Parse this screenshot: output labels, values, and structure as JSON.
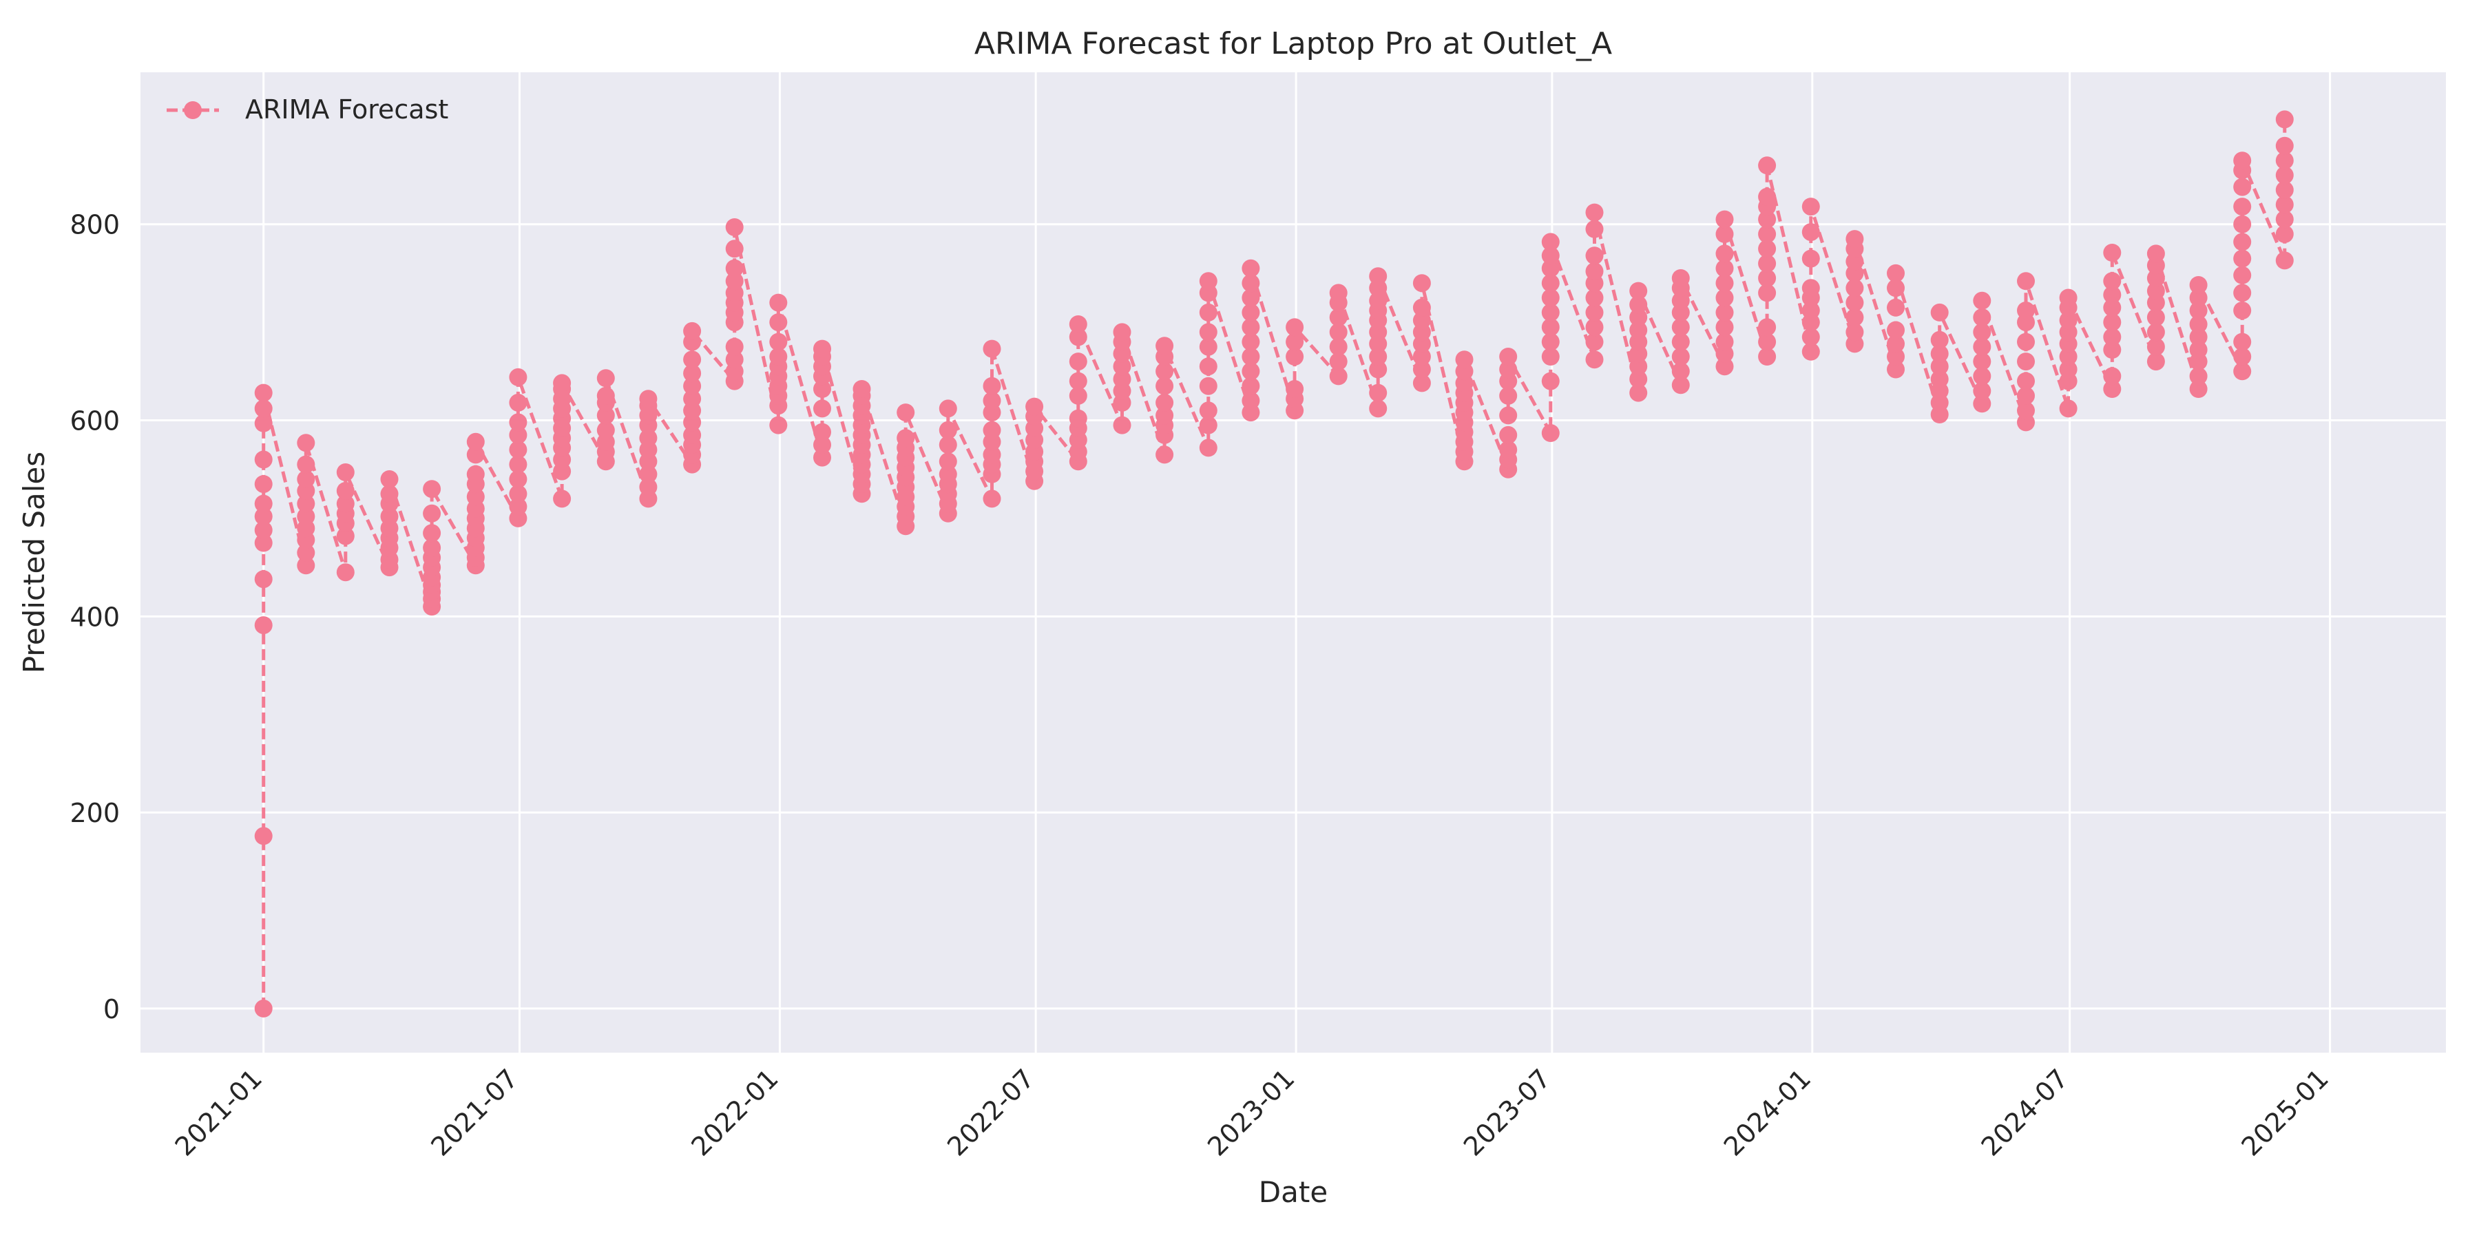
{
  "chart_data": {
    "type": "line",
    "title": "ARIMA Forecast for Laptop Pro at Outlet_A",
    "xlabel": "Date",
    "ylabel": "Predicted Sales",
    "xlim": [
      "2020-10-06",
      "2025-03-24"
    ],
    "ylim": [
      -45,
      955
    ],
    "x_ticks": [
      "2021-01",
      "2021-07",
      "2022-01",
      "2022-07",
      "2023-01",
      "2023-07",
      "2024-01",
      "2024-07",
      "2025-01"
    ],
    "y_ticks": [
      0,
      200,
      400,
      600,
      800
    ],
    "grid": true,
    "background": "#eaeaf2",
    "legend": {
      "position": "top-left",
      "entries": [
        "ARIMA Forecast"
      ]
    },
    "series": [
      {
        "name": "ARIMA Forecast",
        "color": "#f37b93",
        "line_style": "dashed",
        "marker": "circle",
        "points": [
          {
            "date": "2021-01-01",
            "values": [
              0,
              176,
              391,
              438,
              475,
              488,
              502,
              515,
              535,
              560,
              597,
              612,
              628
            ]
          },
          {
            "date": "2021-01-31",
            "values": [
              452,
              465,
              478,
              490,
              502,
              515,
              528,
              540,
              555,
              577
            ]
          },
          {
            "date": "2021-02-28",
            "values": [
              445,
              482,
              495,
              505,
              515,
              528,
              547
            ]
          },
          {
            "date": "2021-03-31",
            "values": [
              450,
              458,
              470,
              480,
              490,
              502,
              515,
              525,
              540
            ]
          },
          {
            "date": "2021-04-30",
            "values": [
              410,
              418,
              425,
              432,
              440,
              450,
              460,
              470,
              485,
              505,
              530
            ]
          },
          {
            "date": "2021-05-31",
            "values": [
              452,
              460,
              470,
              480,
              490,
              500,
              510,
              522,
              535,
              545,
              565,
              578
            ]
          },
          {
            "date": "2021-06-30",
            "values": [
              500,
              512,
              525,
              540,
              555,
              570,
              585,
              598,
              618,
              644
            ]
          },
          {
            "date": "2021-07-31",
            "values": [
              520,
              548,
              560,
              572,
              582,
              592,
              602,
              612,
              622,
              632,
              638
            ]
          },
          {
            "date": "2021-08-31",
            "values": [
              558,
              568,
              578,
              590,
              605,
              618,
              625,
              643
            ]
          },
          {
            "date": "2021-09-30",
            "values": [
              520,
              532,
              545,
              558,
              570,
              582,
              595,
              605,
              615,
              622
            ]
          },
          {
            "date": "2021-10-31",
            "values": [
              555,
              565,
              575,
              585,
              598,
              610,
              622,
              635,
              648,
              662,
              680,
              691
            ]
          },
          {
            "date": "2021-11-30",
            "values": [
              640,
              650,
              662,
              675,
              700,
              710,
              720,
              730,
              742,
              755,
              775,
              797
            ]
          },
          {
            "date": "2021-12-31",
            "values": [
              595,
              615,
              625,
              635,
              645,
              655,
              665,
              680,
              700,
              720
            ]
          },
          {
            "date": "2022-01-31",
            "values": [
              562,
              575,
              588,
              612,
              632,
              645,
              655,
              665,
              673
            ]
          },
          {
            "date": "2022-02-28",
            "values": [
              525,
              535,
              545,
              555,
              565,
              575,
              585,
              595,
              605,
              615,
              625,
              632
            ]
          },
          {
            "date": "2022-03-31",
            "values": [
              492,
              502,
              512,
              522,
              532,
              542,
              552,
              562,
              572,
              582,
              608
            ]
          },
          {
            "date": "2022-04-30",
            "values": [
              505,
              515,
              525,
              535,
              545,
              558,
              575,
              590,
              612
            ]
          },
          {
            "date": "2022-05-31",
            "values": [
              520,
              545,
              555,
              565,
              578,
              590,
              608,
              620,
              635,
              673
            ]
          },
          {
            "date": "2022-06-30",
            "values": [
              538,
              548,
              558,
              568,
              580,
              592,
              604,
              614
            ]
          },
          {
            "date": "2022-07-31",
            "values": [
              558,
              568,
              580,
              592,
              602,
              625,
              640,
              660,
              685,
              698
            ]
          },
          {
            "date": "2022-08-31",
            "values": [
              595,
              618,
              630,
              642,
              655,
              668,
              680,
              690
            ]
          },
          {
            "date": "2022-09-30",
            "values": [
              565,
              585,
              595,
              605,
              618,
              635,
              650,
              665,
              676
            ]
          },
          {
            "date": "2022-10-31",
            "values": [
              572,
              595,
              610,
              635,
              655,
              675,
              690,
              710,
              730,
              742
            ]
          },
          {
            "date": "2022-11-30",
            "values": [
              608,
              620,
              635,
              650,
              665,
              680,
              695,
              710,
              725,
              740,
              755
            ]
          },
          {
            "date": "2022-12-31",
            "values": [
              610,
              622,
              632,
              665,
              680,
              695
            ]
          },
          {
            "date": "2023-01-31",
            "values": [
              645,
              660,
              675,
              690,
              705,
              720,
              730
            ]
          },
          {
            "date": "2023-02-28",
            "values": [
              612,
              628,
              652,
              665,
              678,
              690,
              702,
              712,
              722,
              735,
              747
            ]
          },
          {
            "date": "2023-03-31",
            "values": [
              638,
              652,
              665,
              678,
              690,
              702,
              715,
              740
            ]
          },
          {
            "date": "2023-04-30",
            "values": [
              558,
              568,
              578,
              588,
              598,
              608,
              618,
              628,
              638,
              650,
              662
            ]
          },
          {
            "date": "2023-05-31",
            "values": [
              550,
              560,
              570,
              585,
              605,
              625,
              640,
              652,
              665
            ]
          },
          {
            "date": "2023-06-30",
            "values": [
              587,
              640,
              665,
              680,
              695,
              710,
              725,
              740,
              755,
              768,
              782
            ]
          },
          {
            "date": "2023-07-31",
            "values": [
              662,
              680,
              695,
              710,
              725,
              740,
              752,
              768,
              795,
              812
            ]
          },
          {
            "date": "2023-08-31",
            "values": [
              628,
              642,
              655,
              668,
              680,
              692,
              705,
              718,
              732
            ]
          },
          {
            "date": "2023-09-30",
            "values": [
              636,
              650,
              665,
              680,
              695,
              710,
              722,
              735,
              745
            ]
          },
          {
            "date": "2023-10-31",
            "values": [
              655,
              668,
              680,
              695,
              710,
              725,
              740,
              755,
              770,
              790,
              805
            ]
          },
          {
            "date": "2023-11-30",
            "values": [
              665,
              680,
              695,
              730,
              745,
              760,
              775,
              790,
              805,
              818,
              828,
              860
            ]
          },
          {
            "date": "2023-12-31",
            "values": [
              670,
              685,
              700,
              712,
              725,
              735,
              765,
              792,
              818
            ]
          },
          {
            "date": "2024-01-31",
            "values": [
              678,
              690,
              705,
              720,
              735,
              750,
              762,
              775,
              785
            ]
          },
          {
            "date": "2024-02-29",
            "values": [
              652,
              665,
              678,
              692,
              715,
              735,
              750
            ]
          },
          {
            "date": "2024-03-31",
            "values": [
              606,
              618,
              630,
              642,
              655,
              668,
              682,
              710
            ]
          },
          {
            "date": "2024-04-30",
            "values": [
              617,
              630,
              645,
              660,
              675,
              690,
              705,
              722
            ]
          },
          {
            "date": "2024-05-31",
            "values": [
              598,
              610,
              625,
              640,
              660,
              680,
              700,
              712,
              742
            ]
          },
          {
            "date": "2024-06-30",
            "values": [
              612,
              640,
              652,
              665,
              678,
              690,
              702,
              715,
              725
            ]
          },
          {
            "date": "2024-07-31",
            "values": [
              632,
              645,
              672,
              685,
              700,
              715,
              728,
              742,
              771
            ]
          },
          {
            "date": "2024-08-31",
            "values": [
              660,
              675,
              690,
              705,
              720,
              732,
              745,
              758,
              770
            ]
          },
          {
            "date": "2024-09-30",
            "values": [
              632,
              645,
              660,
              672,
              685,
              698,
              712,
              725,
              738
            ]
          },
          {
            "date": "2024-10-31",
            "values": [
              650,
              665,
              680,
              712,
              730,
              748,
              765,
              782,
              800,
              818,
              838,
              855,
              865
            ]
          },
          {
            "date": "2024-11-30",
            "values": [
              763,
              790,
              805,
              820,
              835,
              850,
              865,
              880,
              907
            ]
          }
        ]
      }
    ]
  }
}
